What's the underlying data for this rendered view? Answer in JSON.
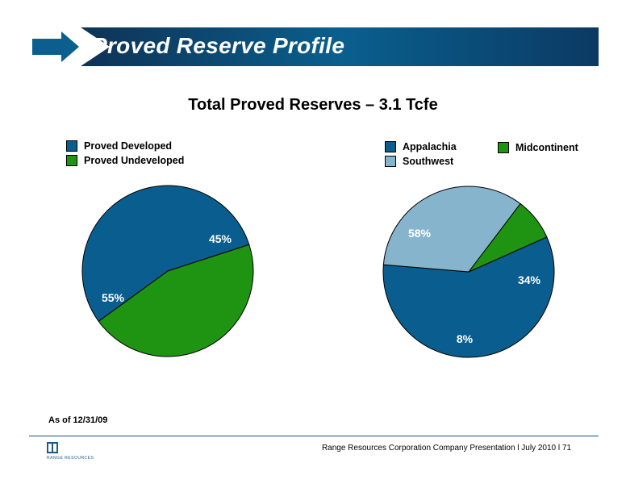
{
  "header": {
    "title": "Proved Reserve Profile"
  },
  "chart_title": "Total Proved Reserves – 3.1 Tcfe",
  "legend_left": [
    {
      "label": "Proved Developed",
      "color": "#0a5d8f"
    },
    {
      "label": "Proved Undeveloped",
      "color": "#1f9312"
    }
  ],
  "legend_right": [
    {
      "label": "Appalachia",
      "color": "#0a5d8f"
    },
    {
      "label": "Midcontinent",
      "color": "#1f9312"
    },
    {
      "label": "Southwest",
      "color": "#86b4cc"
    }
  ],
  "chart_data": [
    {
      "type": "pie",
      "title": "",
      "slices": [
        {
          "name": "Proved Developed",
          "value": 55,
          "label": "55%",
          "color": "#0a5d8f"
        },
        {
          "name": "Proved Undeveloped",
          "value": 45,
          "label": "45%",
          "color": "#1f9312"
        }
      ]
    },
    {
      "type": "pie",
      "title": "",
      "slices": [
        {
          "name": "Appalachia",
          "value": 58,
          "label": "58%",
          "color": "#0a5d8f"
        },
        {
          "name": "Southwest",
          "value": 34,
          "label": "34%",
          "color": "#86b4cc"
        },
        {
          "name": "Midcontinent",
          "value": 8,
          "label": "8%",
          "color": "#1f9312"
        }
      ]
    }
  ],
  "footnote": "As of 12/31/09",
  "footer": {
    "logo_text": "RANGE RESOURCES",
    "text": "Range Resources Corporation Company Presentation  l  July 2010   l   71"
  }
}
